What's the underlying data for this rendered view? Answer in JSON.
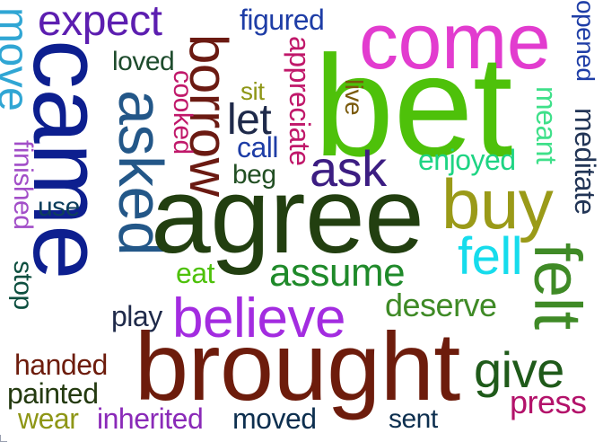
{
  "words": [
    {
      "text": "come",
      "color": "#e23ccf"
    },
    {
      "text": "bet",
      "color": "#4ec10a"
    },
    {
      "text": "expect",
      "color": "#5c1eb0"
    },
    {
      "text": "figured",
      "color": "#1e3da6"
    },
    {
      "text": "opened",
      "color": "#1e3da6"
    },
    {
      "text": "move",
      "color": "#30a6d4"
    },
    {
      "text": "came",
      "color": "#0d1f8f"
    },
    {
      "text": "loved",
      "color": "#1d4b2c"
    },
    {
      "text": "borrow",
      "color": "#6b1a12"
    },
    {
      "text": "appreciate",
      "color": "#c0186a"
    },
    {
      "text": "sit",
      "color": "#8e9616"
    },
    {
      "text": "live",
      "color": "#7a5a0c"
    },
    {
      "text": "meant",
      "color": "#3fe08a"
    },
    {
      "text": "meditate",
      "color": "#223556"
    },
    {
      "text": "asked",
      "color": "#235788"
    },
    {
      "text": "cooked",
      "color": "#c0186a"
    },
    {
      "text": "let",
      "color": "#1f2a4a"
    },
    {
      "text": "call",
      "color": "#1e3da6"
    },
    {
      "text": "enjoyed",
      "color": "#1ed483"
    },
    {
      "text": "finished",
      "color": "#a24ec8"
    },
    {
      "text": "beg",
      "color": "#224f23"
    },
    {
      "text": "ask",
      "color": "#3c1d82"
    },
    {
      "text": "buy",
      "color": "#9a9a18"
    },
    {
      "text": "use",
      "color": "#0d3f5c"
    },
    {
      "text": "agree",
      "color": "#223f10"
    },
    {
      "text": "felt",
      "color": "#3f8a26"
    },
    {
      "text": "stop",
      "color": "#0d4f3f"
    },
    {
      "text": "eat",
      "color": "#4ec10a"
    },
    {
      "text": "assume",
      "color": "#1f8a2a"
    },
    {
      "text": "fell",
      "color": "#16dcec"
    },
    {
      "text": "deserve",
      "color": "#3f8a26"
    },
    {
      "text": "play",
      "color": "#1f2a4a"
    },
    {
      "text": "believe",
      "color": "#a32ce0"
    },
    {
      "text": "brought",
      "color": "#6d1c0c"
    },
    {
      "text": "give",
      "color": "#1f5a1a"
    },
    {
      "text": "handed",
      "color": "#6d1c0c"
    },
    {
      "text": "painted",
      "color": "#243a10"
    },
    {
      "text": "press",
      "color": "#b3126a"
    },
    {
      "text": "wear",
      "color": "#8e9616"
    },
    {
      "text": "inherited",
      "color": "#8a2ab8"
    },
    {
      "text": "moved",
      "color": "#0d2f4f"
    },
    {
      "text": "sent",
      "color": "#0d2f4f"
    }
  ]
}
